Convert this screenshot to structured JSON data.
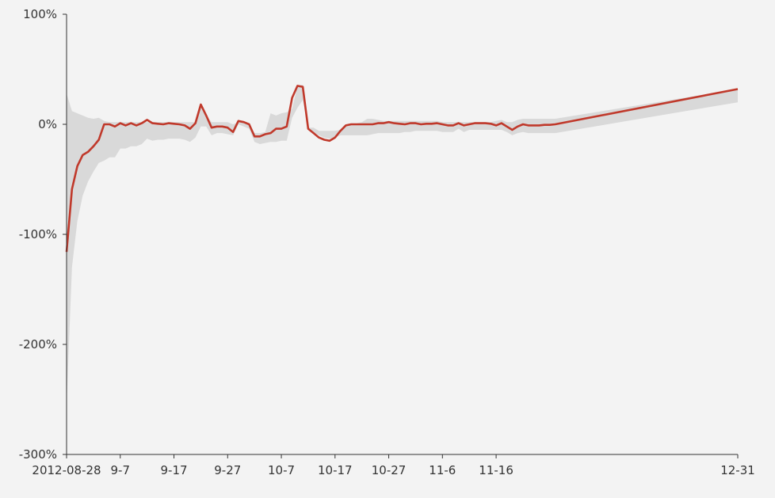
{
  "chart_data": {
    "type": "area",
    "title": "",
    "xlabel": "",
    "ylabel": "",
    "x_start": "2012-08-28",
    "x_end": "2012-12-31",
    "xlim": [
      "2012-08-28",
      "2012-12-31"
    ],
    "ylim": [
      -300,
      100
    ],
    "y_unit": "%",
    "y_ticks": [
      {
        "value": 100,
        "label": "100%"
      },
      {
        "value": 0,
        "label": "0%"
      },
      {
        "value": -100,
        "label": "-100%"
      },
      {
        "value": -200,
        "label": "-200%"
      },
      {
        "value": -300,
        "label": "-300%"
      }
    ],
    "x_ticks": [
      {
        "date": "2012-08-28",
        "label": "2012-08-28"
      },
      {
        "date": "2012-09-07",
        "label": "9-7"
      },
      {
        "date": "2012-09-17",
        "label": "9-17"
      },
      {
        "date": "2012-09-27",
        "label": "9-27"
      },
      {
        "date": "2012-10-07",
        "label": "10-7"
      },
      {
        "date": "2012-10-17",
        "label": "10-17"
      },
      {
        "date": "2012-10-27",
        "label": "10-27"
      },
      {
        "date": "2012-11-06",
        "label": "11-6"
      },
      {
        "date": "2012-11-16",
        "label": "11-16"
      },
      {
        "date": "2012-12-31",
        "label": "12-31"
      }
    ],
    "grid": false,
    "legend": "none",
    "colors": {
      "line": "#c0392b",
      "band": "#d9d9d9",
      "background": "#f3f3f3",
      "axis": "#333333"
    },
    "series": [
      {
        "role": "line",
        "points": [
          [
            "2012-08-28",
            -116
          ],
          [
            "2012-08-29",
            -59
          ],
          [
            "2012-08-30",
            -38
          ],
          [
            "2012-08-31",
            -28
          ],
          [
            "2012-09-01",
            -25
          ],
          [
            "2012-09-02",
            -20
          ],
          [
            "2012-09-03",
            -14
          ],
          [
            "2012-09-04",
            0
          ],
          [
            "2012-09-05",
            0
          ],
          [
            "2012-09-06",
            -2
          ],
          [
            "2012-09-07",
            1
          ],
          [
            "2012-09-08",
            -1
          ],
          [
            "2012-09-09",
            1
          ],
          [
            "2012-09-10",
            -1
          ],
          [
            "2012-09-11",
            1
          ],
          [
            "2012-09-12",
            4
          ],
          [
            "2012-09-13",
            1
          ],
          [
            "2012-09-14",
            0.5
          ],
          [
            "2012-09-15",
            0
          ],
          [
            "2012-09-16",
            1
          ],
          [
            "2012-09-17",
            0.5
          ],
          [
            "2012-09-18",
            0
          ],
          [
            "2012-09-19",
            -1
          ],
          [
            "2012-09-20",
            -4
          ],
          [
            "2012-09-21",
            1
          ],
          [
            "2012-09-22",
            18
          ],
          [
            "2012-09-23",
            8
          ],
          [
            "2012-09-24",
            -3
          ],
          [
            "2012-09-25",
            -2
          ],
          [
            "2012-09-26",
            -2
          ],
          [
            "2012-09-27",
            -3
          ],
          [
            "2012-09-28",
            -7
          ],
          [
            "2012-09-29",
            3
          ],
          [
            "2012-09-30",
            2
          ],
          [
            "2012-10-01",
            0
          ],
          [
            "2012-10-02",
            -11
          ],
          [
            "2012-10-03",
            -11
          ],
          [
            "2012-10-04",
            -9
          ],
          [
            "2012-10-05",
            -8
          ],
          [
            "2012-10-06",
            -4
          ],
          [
            "2012-10-07",
            -4
          ],
          [
            "2012-10-08",
            -2
          ],
          [
            "2012-10-09",
            24
          ],
          [
            "2012-10-10",
            35
          ],
          [
            "2012-10-11",
            34
          ],
          [
            "2012-10-12",
            -4
          ],
          [
            "2012-10-13",
            -8
          ],
          [
            "2012-10-14",
            -12
          ],
          [
            "2012-10-15",
            -14
          ],
          [
            "2012-10-16",
            -15
          ],
          [
            "2012-10-17",
            -12
          ],
          [
            "2012-10-18",
            -6
          ],
          [
            "2012-10-19",
            -1
          ],
          [
            "2012-10-20",
            0
          ],
          [
            "2012-10-21",
            0
          ],
          [
            "2012-10-22",
            0
          ],
          [
            "2012-10-23",
            0
          ],
          [
            "2012-10-24",
            0
          ],
          [
            "2012-10-25",
            1
          ],
          [
            "2012-10-26",
            1
          ],
          [
            "2012-10-27",
            2
          ],
          [
            "2012-10-28",
            1
          ],
          [
            "2012-10-29",
            0.5
          ],
          [
            "2012-10-30",
            0
          ],
          [
            "2012-10-31",
            1
          ],
          [
            "2012-11-01",
            1
          ],
          [
            "2012-11-02",
            0
          ],
          [
            "2012-11-03",
            0.5
          ],
          [
            "2012-11-04",
            0.5
          ],
          [
            "2012-11-05",
            1
          ],
          [
            "2012-11-06",
            0
          ],
          [
            "2012-11-07",
            -1
          ],
          [
            "2012-11-08",
            -1
          ],
          [
            "2012-11-09",
            1
          ],
          [
            "2012-11-10",
            -1
          ],
          [
            "2012-11-11",
            0
          ],
          [
            "2012-11-12",
            1
          ],
          [
            "2012-11-13",
            1
          ],
          [
            "2012-11-14",
            1
          ],
          [
            "2012-11-15",
            0.5
          ],
          [
            "2012-11-16",
            -1
          ],
          [
            "2012-11-17",
            1
          ],
          [
            "2012-11-18",
            -2
          ],
          [
            "2012-11-19",
            -5
          ],
          [
            "2012-11-20",
            -2
          ],
          [
            "2012-11-21",
            0
          ],
          [
            "2012-11-22",
            -1
          ],
          [
            "2012-11-23",
            -1
          ],
          [
            "2012-11-24",
            -1
          ],
          [
            "2012-11-25",
            -0.5
          ],
          [
            "2012-11-26",
            -0.5
          ],
          [
            "2012-11-27",
            0
          ],
          [
            "2012-12-31",
            32
          ]
        ]
      },
      {
        "role": "band",
        "points": [
          [
            "2012-08-28",
            28,
            -255
          ],
          [
            "2012-08-29",
            12,
            -130
          ],
          [
            "2012-08-30",
            10,
            -88
          ],
          [
            "2012-08-31",
            8,
            -65
          ],
          [
            "2012-09-01",
            6,
            -52
          ],
          [
            "2012-09-02",
            5,
            -43
          ],
          [
            "2012-09-03",
            6,
            -35
          ],
          [
            "2012-09-04",
            3,
            -33
          ],
          [
            "2012-09-05",
            2,
            -30
          ],
          [
            "2012-09-06",
            2,
            -30
          ],
          [
            "2012-09-07",
            2,
            -22
          ],
          [
            "2012-09-08",
            2,
            -22
          ],
          [
            "2012-09-09",
            2,
            -20
          ],
          [
            "2012-09-10",
            2,
            -20
          ],
          [
            "2012-09-11",
            2,
            -18
          ],
          [
            "2012-09-12",
            2,
            -13
          ],
          [
            "2012-09-13",
            2,
            -15
          ],
          [
            "2012-09-14",
            2,
            -14
          ],
          [
            "2012-09-15",
            2,
            -14
          ],
          [
            "2012-09-16",
            2,
            -13
          ],
          [
            "2012-09-17",
            2,
            -13
          ],
          [
            "2012-09-18",
            2,
            -13
          ],
          [
            "2012-09-19",
            2,
            -14
          ],
          [
            "2012-09-20",
            2,
            -16
          ],
          [
            "2012-09-21",
            2,
            -12
          ],
          [
            "2012-09-22",
            16,
            -2
          ],
          [
            "2012-09-23",
            8,
            -2
          ],
          [
            "2012-09-24",
            2,
            -10
          ],
          [
            "2012-09-25",
            2,
            -8
          ],
          [
            "2012-09-26",
            2,
            -8
          ],
          [
            "2012-09-27",
            2,
            -9
          ],
          [
            "2012-09-28",
            0,
            -10
          ],
          [
            "2012-09-29",
            2,
            0
          ],
          [
            "2012-09-30",
            2,
            -2
          ],
          [
            "2012-10-01",
            0,
            -4
          ],
          [
            "2012-10-02",
            -8,
            -16
          ],
          [
            "2012-10-03",
            -8,
            -18
          ],
          [
            "2012-10-04",
            -7,
            -17
          ],
          [
            "2012-10-05",
            10,
            -16
          ],
          [
            "2012-10-06",
            8,
            -16
          ],
          [
            "2012-10-07",
            10,
            -15
          ],
          [
            "2012-10-08",
            11,
            -15
          ],
          [
            "2012-10-09",
            14,
            6
          ],
          [
            "2012-10-10",
            35,
            15
          ],
          [
            "2012-10-11",
            36,
            22
          ],
          [
            "2012-10-12",
            -3,
            -3
          ],
          [
            "2012-10-13",
            -3,
            -7
          ],
          [
            "2012-10-14",
            -6,
            -10
          ],
          [
            "2012-10-15",
            -6,
            -12
          ],
          [
            "2012-10-16",
            -6,
            -13
          ],
          [
            "2012-10-17",
            -6,
            -12
          ],
          [
            "2012-10-18",
            -5,
            -10
          ],
          [
            "2012-10-19",
            0,
            -10
          ],
          [
            "2012-10-20",
            1,
            -10
          ],
          [
            "2012-10-21",
            1,
            -10
          ],
          [
            "2012-10-22",
            2,
            -10
          ],
          [
            "2012-10-23",
            5,
            -10
          ],
          [
            "2012-10-24",
            5,
            -9
          ],
          [
            "2012-10-25",
            4,
            -8
          ],
          [
            "2012-10-26",
            3,
            -8
          ],
          [
            "2012-10-27",
            3,
            -8
          ],
          [
            "2012-10-28",
            3,
            -8
          ],
          [
            "2012-10-29",
            3,
            -8
          ],
          [
            "2012-10-30",
            3,
            -7
          ],
          [
            "2012-10-31",
            3,
            -7
          ],
          [
            "2012-11-01",
            3,
            -6
          ],
          [
            "2012-11-02",
            3,
            -6
          ],
          [
            "2012-11-03",
            3,
            -6
          ],
          [
            "2012-11-04",
            3,
            -6
          ],
          [
            "2012-11-05",
            3,
            -6
          ],
          [
            "2012-11-06",
            2,
            -7
          ],
          [
            "2012-11-07",
            2,
            -7
          ],
          [
            "2012-11-08",
            2,
            -7
          ],
          [
            "2012-11-09",
            2,
            -4
          ],
          [
            "2012-11-10",
            2,
            -7
          ],
          [
            "2012-11-11",
            2,
            -5
          ],
          [
            "2012-11-12",
            2,
            -5
          ],
          [
            "2012-11-13",
            2,
            -5
          ],
          [
            "2012-11-14",
            2,
            -5
          ],
          [
            "2012-11-15",
            2,
            -5
          ],
          [
            "2012-11-16",
            3,
            -5
          ],
          [
            "2012-11-17",
            4,
            -5
          ],
          [
            "2012-11-18",
            2,
            -7
          ],
          [
            "2012-11-19",
            2,
            -10
          ],
          [
            "2012-11-20",
            4,
            -8
          ],
          [
            "2012-11-21",
            5,
            -7
          ],
          [
            "2012-11-22",
            5,
            -8
          ],
          [
            "2012-11-23",
            5,
            -8
          ],
          [
            "2012-11-24",
            5,
            -8
          ],
          [
            "2012-11-25",
            5,
            -8
          ],
          [
            "2012-11-26",
            5,
            -8
          ],
          [
            "2012-11-27",
            5,
            -8
          ],
          [
            "2012-12-31",
            32,
            20
          ]
        ]
      }
    ]
  }
}
